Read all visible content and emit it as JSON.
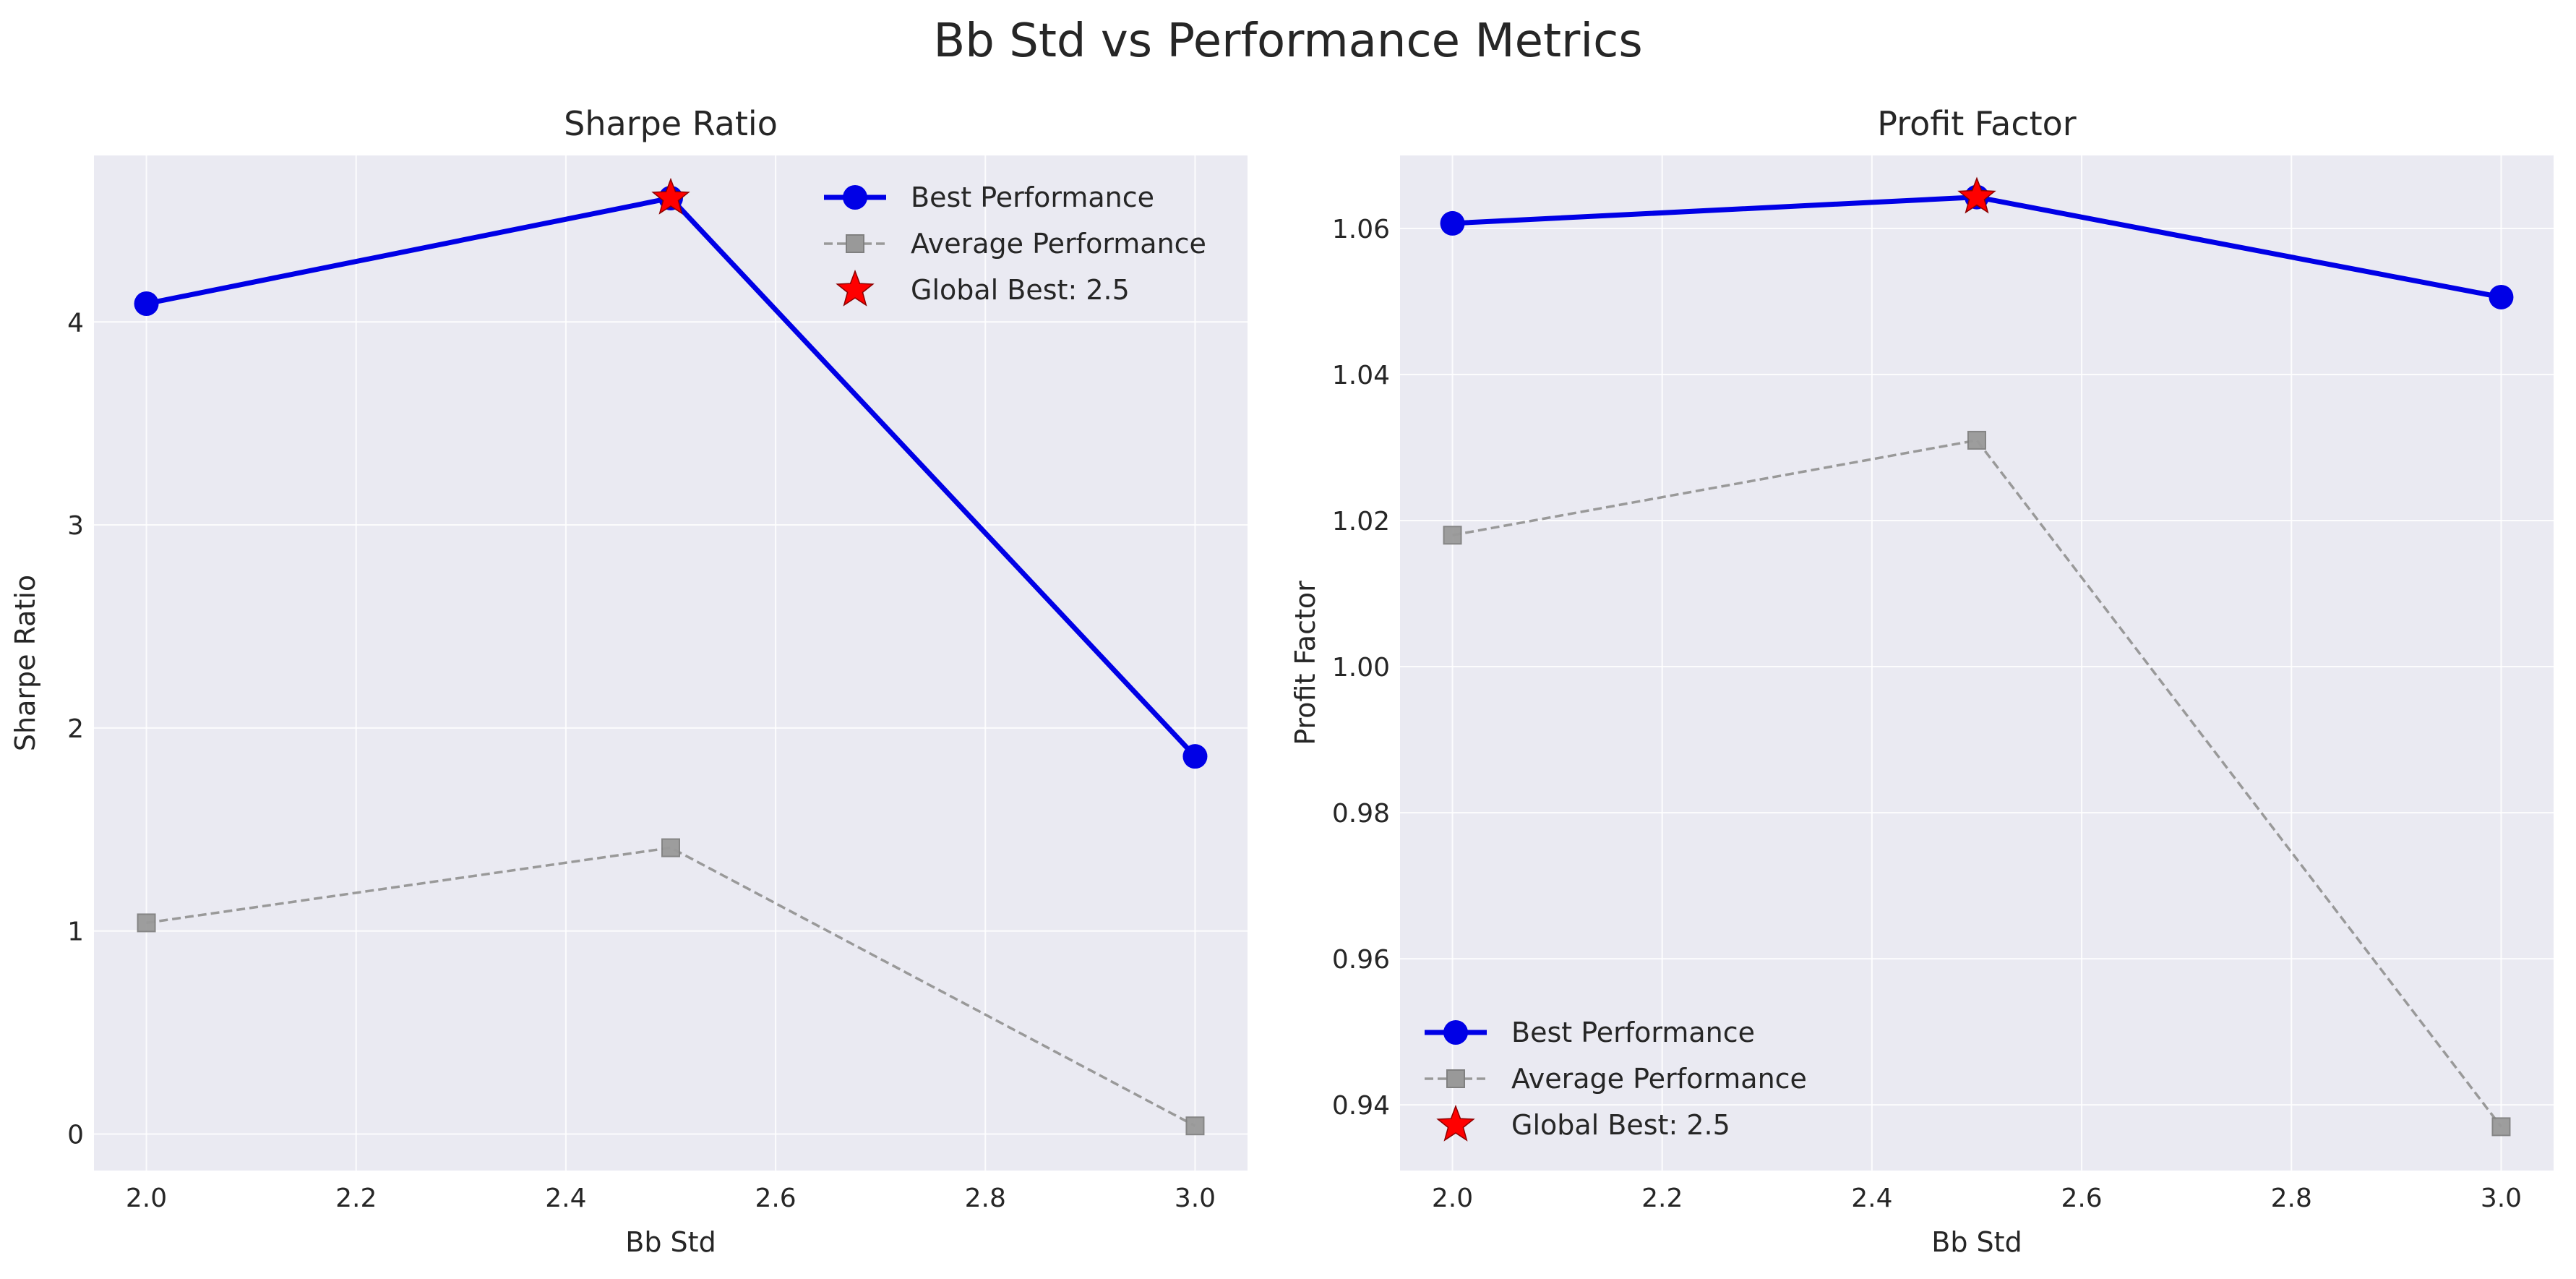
{
  "figure": {
    "title": "Bb Std vs Performance Metrics"
  },
  "colors": {
    "panel_bg": "#eaeaf2",
    "grid": "#ffffff",
    "best": "#0000e6",
    "average": "#999999",
    "global_best": "#ff0000",
    "text": "#262626"
  },
  "legend": {
    "best_label": "Best Performance",
    "average_label": "Average Performance",
    "global_best_label": "Global Best: 2.5"
  },
  "chart_data": [
    {
      "type": "line",
      "title": "Sharpe Ratio",
      "xlabel": "Bb Std",
      "ylabel": "Sharpe Ratio",
      "x": [
        2.0,
        2.5,
        3.0
      ],
      "xlim": [
        1.95,
        3.05
      ],
      "ylim": [
        -0.18,
        4.82
      ],
      "xticks": [
        "2.0",
        "2.2",
        "2.4",
        "2.6",
        "2.8",
        "3.0"
      ],
      "yticks": [
        "0",
        "1",
        "2",
        "3",
        "4"
      ],
      "legend_position": "upper right",
      "grid": true,
      "series": [
        {
          "name": "Best Performance",
          "values": [
            4.09,
            4.61,
            1.86
          ],
          "style": "solid-circle"
        },
        {
          "name": "Average Performance",
          "values": [
            1.04,
            1.41,
            0.04
          ],
          "style": "dashed-square"
        }
      ],
      "global_best": {
        "name": "Global Best: 2.5",
        "x": 2.5,
        "y": 4.61
      }
    },
    {
      "type": "line",
      "title": "Profit Factor",
      "xlabel": "Bb Std",
      "ylabel": "Profit Factor",
      "x": [
        2.0,
        2.5,
        3.0
      ],
      "xlim": [
        1.95,
        3.05
      ],
      "ylim": [
        0.931,
        1.07
      ],
      "xticks": [
        "2.0",
        "2.2",
        "2.4",
        "2.6",
        "2.8",
        "3.0"
      ],
      "yticks": [
        "0.94",
        "0.96",
        "0.98",
        "1.00",
        "1.02",
        "1.04",
        "1.06"
      ],
      "legend_position": "lower left",
      "grid": true,
      "series": [
        {
          "name": "Best Performance",
          "values": [
            1.0607,
            1.0643,
            1.0506
          ],
          "style": "solid-circle"
        },
        {
          "name": "Average Performance",
          "values": [
            1.018,
            1.031,
            0.937
          ],
          "style": "dashed-square"
        }
      ],
      "global_best": {
        "name": "Global Best: 2.5",
        "x": 2.5,
        "y": 1.0643
      }
    }
  ]
}
